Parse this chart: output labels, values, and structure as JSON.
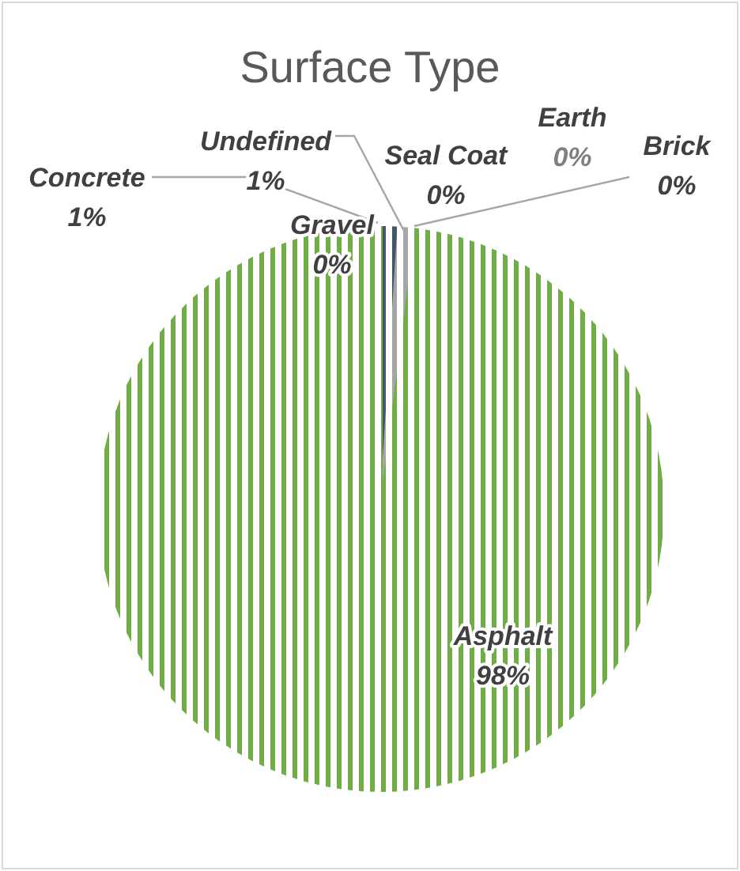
{
  "chart_data": {
    "type": "pie",
    "title": "Surface Type",
    "categories": [
      "Concrete",
      "Undefined",
      "Gravel",
      "Seal Coat",
      "Earth",
      "Brick",
      "Asphalt"
    ],
    "values": [
      1,
      1,
      0,
      0,
      0,
      0,
      98
    ],
    "colors": [
      "#44546a",
      "#a5a5a5",
      null,
      null,
      null,
      null,
      "#70ad47"
    ],
    "value_labels": [
      "1%",
      "1%",
      "0%",
      "0%",
      "0%",
      "0%",
      "98%"
    ]
  }
}
